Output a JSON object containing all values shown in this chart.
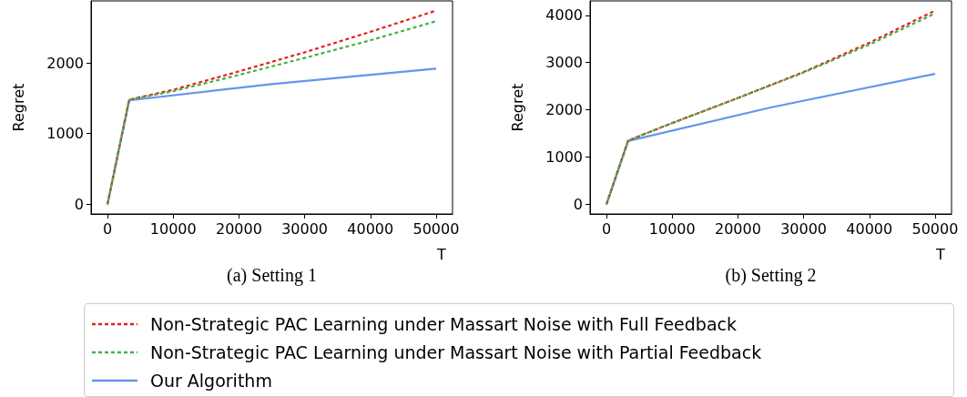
{
  "chart_data": [
    {
      "type": "line",
      "xlabel": "T",
      "ylabel": "Regret",
      "annotations": [
        "(a) Setting 1"
      ],
      "legend": "bottom",
      "xlim": [
        -2500,
        52500
      ],
      "xticks": [
        0,
        10000,
        20000,
        30000,
        40000,
        50000
      ],
      "ylim": [
        -137,
        2877
      ],
      "yticks": [
        0,
        1000,
        2000
      ],
      "series": [
        {
          "name": "Non-Strategic PAC Learning under Massart Noise with Full Feedback",
          "color": "#e8201e",
          "line_style": "dashed",
          "x": [
            0,
            3300,
            10000,
            20000,
            30000,
            40000,
            50000
          ],
          "values": [
            0,
            1480,
            1620,
            1880,
            2150,
            2440,
            2740
          ]
        },
        {
          "name": "Non-Strategic PAC Learning under Massart Noise with Partial Feedback",
          "color": "#44b044",
          "line_style": "dashed",
          "x": [
            0,
            3300,
            10000,
            20000,
            30000,
            40000,
            50000
          ],
          "values": [
            0,
            1480,
            1600,
            1830,
            2070,
            2320,
            2590
          ]
        },
        {
          "name": "Our Algorithm",
          "color": "#6495ed",
          "line_style": "solid",
          "x": [
            0,
            3300,
            25000,
            50000
          ],
          "values": [
            0,
            1470,
            1700,
            1920
          ]
        }
      ]
    },
    {
      "type": "line",
      "xlabel": "T",
      "ylabel": "Regret",
      "annotations": [
        "(b) Setting 2"
      ],
      "xlim": [
        -2500,
        52500
      ],
      "xticks": [
        0,
        10000,
        20000,
        30000,
        40000,
        50000
      ],
      "ylim": [
        -205,
        4305
      ],
      "yticks": [
        0,
        1000,
        2000,
        3000,
        4000
      ],
      "series": [
        {
          "name": "Non-Strategic PAC Learning under Massart Noise with Full Feedback",
          "color": "#e8201e",
          "line_style": "dashed",
          "x": [
            0,
            3300,
            10000,
            20000,
            30000,
            40000,
            50000
          ],
          "values": [
            0,
            1350,
            1720,
            2250,
            2800,
            3420,
            4100
          ]
        },
        {
          "name": "Non-Strategic PAC Learning under Massart Noise with Partial Feedback",
          "color": "#44b044",
          "line_style": "dashed",
          "x": [
            0,
            3300,
            10000,
            20000,
            30000,
            40000,
            50000
          ],
          "values": [
            0,
            1350,
            1720,
            2250,
            2790,
            3380,
            4040
          ]
        },
        {
          "name": "Our Algorithm",
          "color": "#6495ed",
          "line_style": "solid",
          "x": [
            0,
            3300,
            25000,
            50000
          ],
          "values": [
            0,
            1340,
            2050,
            2760
          ]
        }
      ]
    }
  ]
}
